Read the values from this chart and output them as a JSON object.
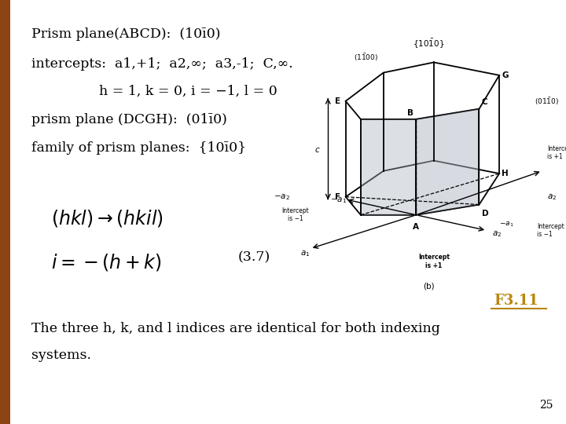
{
  "bg_color": "#ffffff",
  "left_bar_color": "#8B4513",
  "text_color": "#000000",
  "ref_color": "#B8860B",
  "diagram_bg": "#c8cfd8",
  "bar_width": 0.018,
  "title_line1": "Prism plane(ABCD):  (10ī0)",
  "line2": "intercepts:  a1,+1;  a2,∞;  a3,-1;  C,∞.",
  "line3": "h = 1, k = 0, i = −1, l = 0",
  "line4": "prism plane (DCGH):  (01ī0)",
  "line5": "family of prism planes:  {10ī0}",
  "eq_number": "(3.7)",
  "ref_text": "F3.11",
  "bottom_text1": "The three h, k, and l indices are identical for both indexing",
  "bottom_text2": "systems.",
  "page_num": "25"
}
